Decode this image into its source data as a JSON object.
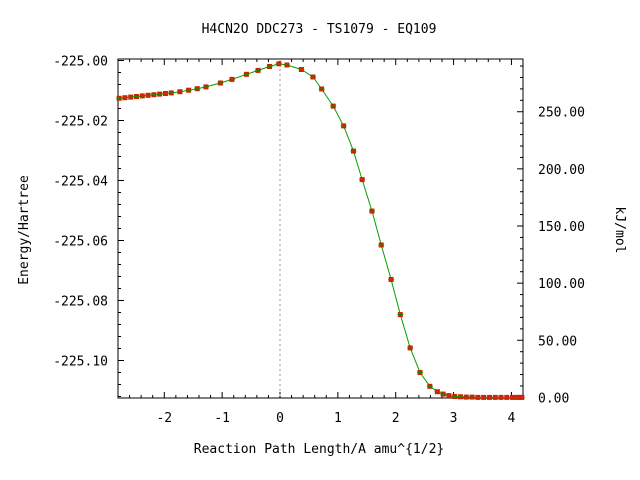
{
  "chart_data": {
    "type": "line",
    "title": "H4CN2O   DDC273 - TS1079 - EQ109",
    "xlabel": "Reaction Path Length/A amu^{1/2}",
    "ylabel": "Energy/Hartree",
    "y2label": "kJ/mol",
    "xlim": [
      -2.8,
      4.2
    ],
    "ylim": [
      -225.1125,
      -224.9995
    ],
    "y2_zero_hartree": -225.1123,
    "hartree_to_kjmol": 2625.5,
    "x_ticks": [
      -2,
      -1,
      0,
      1,
      2,
      3,
      4
    ],
    "x_tick_labels": [
      "-2",
      "-1",
      "0",
      "1",
      "2",
      "3",
      "4"
    ],
    "y_ticks": [
      -225.0,
      -225.02,
      -225.04,
      -225.06,
      -225.08,
      -225.1
    ],
    "y_tick_labels": [
      "-225.00",
      "-225.02",
      "-225.04",
      "-225.06",
      "-225.08",
      "-225.10"
    ],
    "y2_ticks": [
      0,
      50,
      100,
      150,
      200,
      250
    ],
    "y2_tick_labels": [
      "0.00",
      "50.00",
      "100.00",
      "150.00",
      "200.00",
      "250.00"
    ],
    "ts_x": 0,
    "grid": false,
    "line_color": "#00a000",
    "marker_color": "#cc2200",
    "series": [
      {
        "x": [
          -2.78,
          -2.68,
          -2.58,
          -2.48,
          -2.38,
          -2.28,
          -2.18,
          -2.08,
          -1.98,
          -1.88,
          -1.73,
          -1.58,
          -1.43,
          -1.28,
          -1.03,
          -0.83,
          -0.58,
          -0.38,
          -0.18,
          -0.02,
          0.12,
          0.37,
          0.57,
          0.72,
          0.92,
          1.1,
          1.27,
          1.42,
          1.59,
          1.75,
          1.92,
          2.08,
          2.25,
          2.42,
          2.59,
          2.72,
          2.82,
          2.92,
          3.02,
          3.12,
          3.22,
          3.32,
          3.42,
          3.52,
          3.62,
          3.72,
          3.82,
          3.92,
          4.02,
          4.1,
          4.15,
          4.18
        ],
        "y": [
          -225.0126,
          -225.0124,
          -225.0122,
          -225.012,
          -225.0118,
          -225.0116,
          -225.0114,
          -225.0112,
          -225.011,
          -225.0108,
          -225.0104,
          -225.0099,
          -225.0094,
          -225.0088,
          -225.0075,
          -225.0063,
          -225.0046,
          -225.0033,
          -225.002,
          -225.0011,
          -225.0015,
          -225.003,
          -225.0055,
          -225.0095,
          -225.0152,
          -225.0218,
          -225.0302,
          -225.0397,
          -225.0502,
          -225.0615,
          -225.073,
          -225.0847,
          -225.0958,
          -225.104,
          -225.1086,
          -225.1104,
          -225.1112,
          -225.1117,
          -225.112,
          -225.1121,
          -225.1122,
          -225.1122,
          -225.1123,
          -225.1123,
          -225.1123,
          -225.1123,
          -225.1123,
          -225.1123,
          -225.1123,
          -225.1123,
          -225.1123,
          -225.1123
        ]
      }
    ]
  }
}
